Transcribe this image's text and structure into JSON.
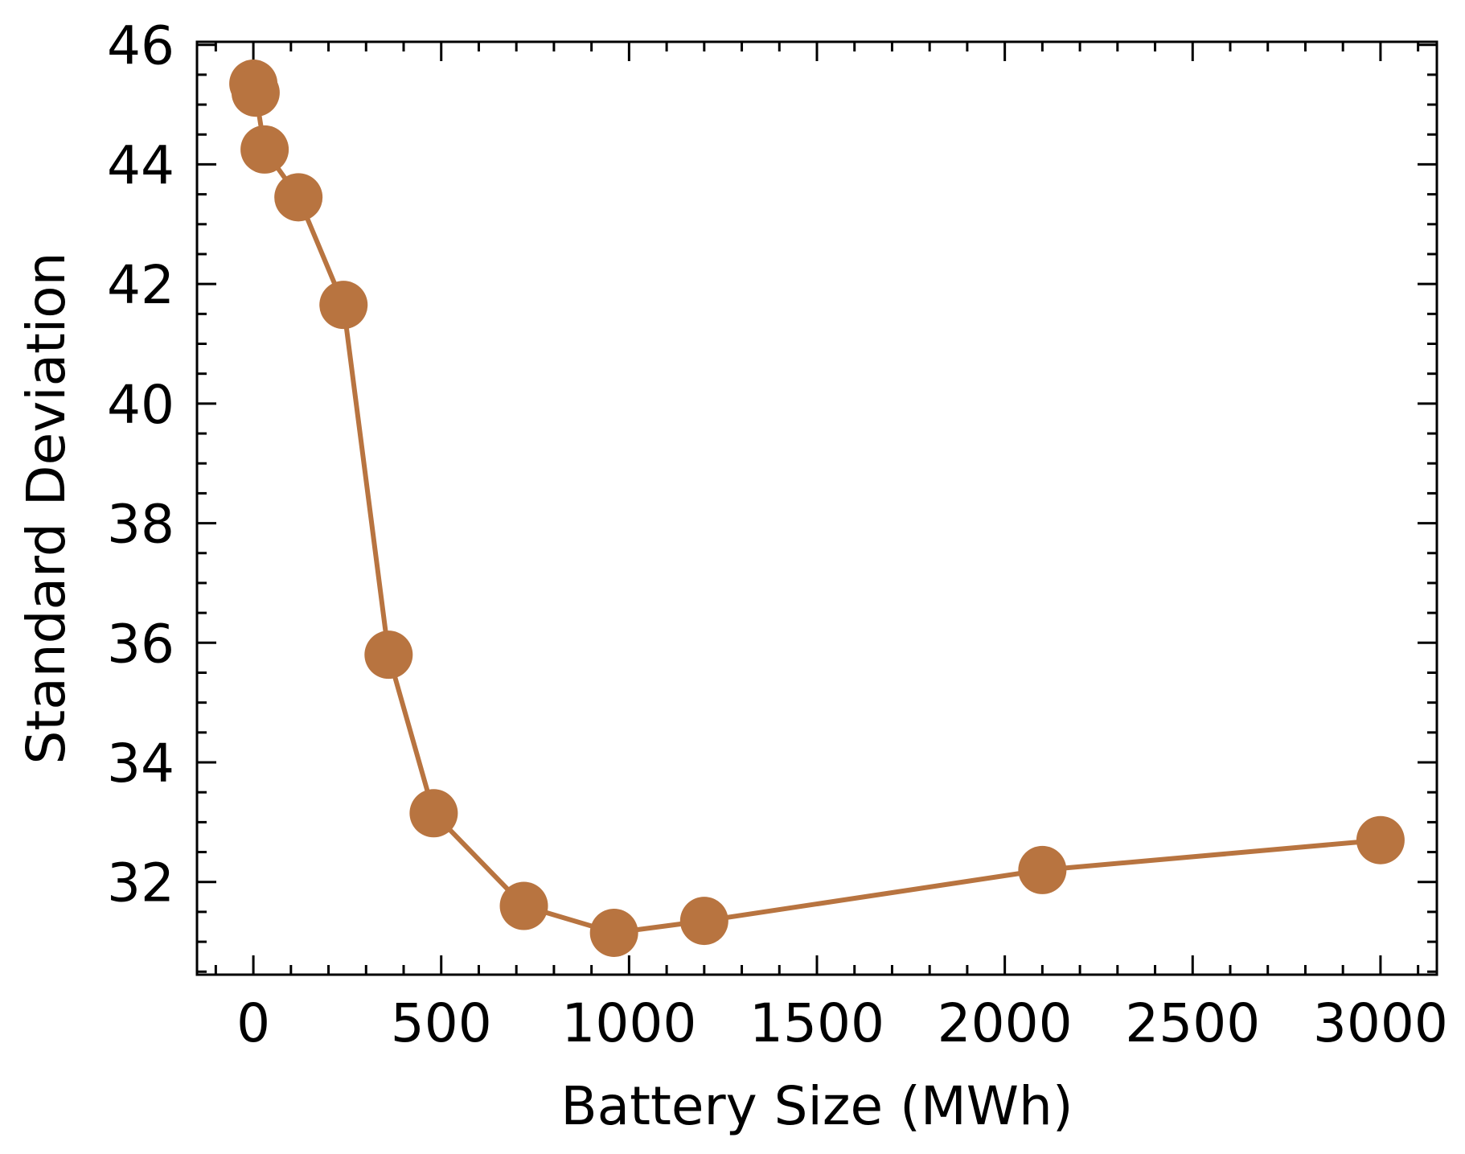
{
  "chart_data": {
    "type": "line",
    "title": "",
    "xlabel": "Battery Size (MWh)",
    "ylabel": "Standard Deviation",
    "xlim": [
      -150,
      3150
    ],
    "ylim": [
      30.45,
      46.05
    ],
    "xticks": [
      0,
      500,
      1000,
      1500,
      2000,
      2500,
      3000
    ],
    "xtick_labels": [
      "0",
      "500",
      "1000",
      "1500",
      "2000",
      "2500",
      "3000"
    ],
    "yticks": [
      32,
      34,
      36,
      38,
      40,
      42,
      44,
      46
    ],
    "ytick_labels": [
      "32",
      "34",
      "36",
      "38",
      "40",
      "42",
      "44",
      "46"
    ],
    "x_minor_step": 100,
    "y_minor_step": 0.5,
    "grid": false,
    "legend": "none",
    "series": [
      {
        "color": "#b87440",
        "marker": "circle",
        "x": [
          0,
          6,
          30,
          120,
          240,
          360,
          480,
          720,
          960,
          1200,
          2100,
          3000
        ],
        "y": [
          45.35,
          45.2,
          44.25,
          43.45,
          41.65,
          35.8,
          33.15,
          31.6,
          31.15,
          31.35,
          32.2,
          32.7
        ]
      }
    ]
  }
}
